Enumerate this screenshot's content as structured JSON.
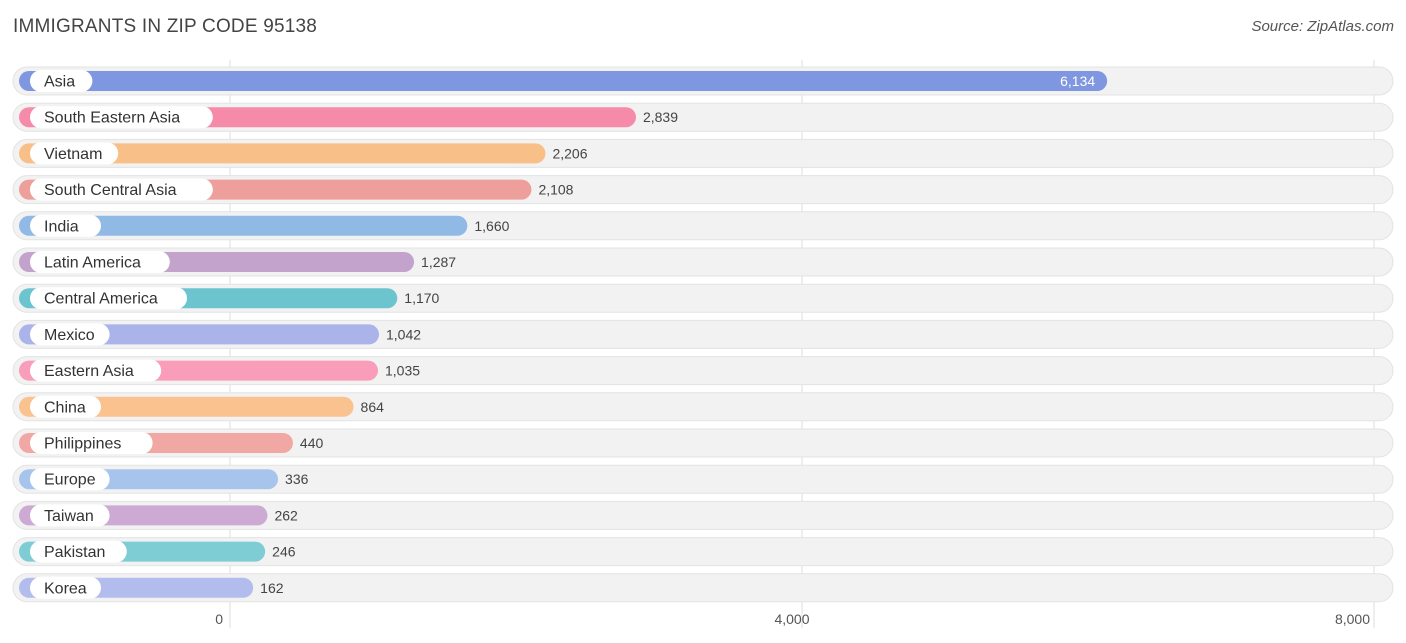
{
  "title": "IMMIGRANTS IN ZIP CODE 95138",
  "source": "Source: ZipAtlas.com",
  "chart_data": {
    "type": "bar",
    "orientation": "horizontal",
    "categories": [
      "Asia",
      "South Eastern Asia",
      "Vietnam",
      "South Central Asia",
      "India",
      "Latin America",
      "Central America",
      "Mexico",
      "Eastern Asia",
      "China",
      "Philippines",
      "Europe",
      "Taiwan",
      "Pakistan",
      "Korea"
    ],
    "values": [
      6134,
      2839,
      2206,
      2108,
      1660,
      1287,
      1170,
      1042,
      1035,
      864,
      440,
      336,
      262,
      246,
      162
    ],
    "value_labels": [
      "6,134",
      "2,839",
      "2,206",
      "2,108",
      "1,660",
      "1,287",
      "1,170",
      "1,042",
      "1,035",
      "864",
      "440",
      "336",
      "262",
      "246",
      "162"
    ],
    "colors": [
      "#7f96e0",
      "#f58aa9",
      "#f9bf88",
      "#ee9e9b",
      "#91b9e6",
      "#c3a2cb",
      "#6cc4cf",
      "#aab3ea",
      "#f99dbb",
      "#f9c28f",
      "#f1a8a5",
      "#a7c5ec",
      "#cdaad3",
      "#7fcdd4",
      "#b3bded"
    ],
    "xlim": [
      0,
      8000
    ],
    "ticks": [
      0,
      4000,
      8000
    ],
    "tick_labels": [
      "0",
      "4,000",
      "8,000"
    ],
    "grid": true,
    "xlabel": "",
    "ylabel": ""
  }
}
